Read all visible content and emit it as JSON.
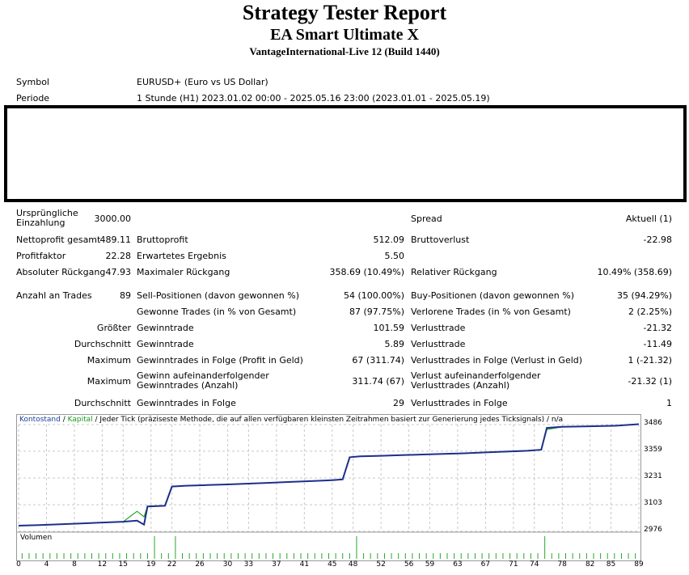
{
  "header": {
    "title": "Strategy Tester Report",
    "subtitle": "EA Smart Ultimate X",
    "server": "VantageInternational-Live 12 (Build 1440)"
  },
  "info": {
    "symbol_label": "Symbol",
    "symbol_value": "EURUSD+ (Euro vs US Dollar)",
    "period_label": "Periode",
    "period_value": "1 Stunde (H1) 2023.01.02 00:00 - 2025.05.16 23:00 (2023.01.01 - 2025.05.19)"
  },
  "stats": {
    "initial_label": "Ursprüngliche Einzahlung",
    "initial_value": "3000.00",
    "spread_label": "Spread",
    "spread_value": "Aktuell (1)",
    "netprofit_label": "Nettoprofit gesamt",
    "netprofit_value": "489.11",
    "grossprofit_label": "Bruttoprofit",
    "grossprofit_value": "512.09",
    "grossloss_label": "Bruttoverlust",
    "grossloss_value": "-22.98",
    "profitfactor_label": "Profitfaktor",
    "profitfactor_value": "22.28",
    "expected_label": "Erwartetes Ergebnis",
    "expected_value": "5.50",
    "absdd_label": "Absoluter Rückgang",
    "absdd_value": "47.93",
    "maxdd_label": "Maximaler Rückgang",
    "maxdd_value": "358.69 (10.49%)",
    "reldd_label": "Relativer Rückgang",
    "reldd_value": "10.49% (358.69)",
    "trades_label": "Anzahl an Trades",
    "trades_value": "89",
    "sell_label": "Sell-Positionen (davon gewonnen %)",
    "sell_value": "54 (100.00%)",
    "buy_label": "Buy-Positionen (davon gewonnen %)",
    "buy_value": "35 (94.29%)",
    "won_label": "Gewonne Trades (in % von Gesamt)",
    "won_value": "87 (97.75%)",
    "lost_label": "Verlorene Trades (in % von Gesamt)",
    "lost_value": "2 (2.25%)",
    "largest_prefix": "Größter",
    "largest_win_label": "Gewinntrade",
    "largest_win_value": "101.59",
    "largest_loss_label": "Verlusttrade",
    "largest_loss_value": "-21.32",
    "avg_prefix": "Durchschnitt",
    "avg_win_label": "Gewinntrade",
    "avg_win_value": "5.89",
    "avg_loss_label": "Verlusttrade",
    "avg_loss_value": "-11.49",
    "max_prefix": "Maximum",
    "max_consec_win_label": "Gewinntrades in Folge (Profit in Geld)",
    "max_consec_win_value": "67 (311.74)",
    "max_consec_loss_label": "Verlusttrades in Folge (Verlust in Geld)",
    "max_consec_loss_value": "1 (-21.32)",
    "max2_prefix": "Maximum",
    "max_consec_profit_label": "Gewinn aufeinanderfolgender Gewinntrades (Anzahl)",
    "max_consec_profit_value": "311.74 (67)",
    "max_consec_lossamt_label": "Verlust aufeinanderfolgender Verlusttrades (Anzahl)",
    "max_consec_lossamt_value": "-21.32 (1)",
    "avg2_prefix": "Durchschnitt",
    "avg_consec_win_label": "Gewinntrades in Folge",
    "avg_consec_win_value": "29",
    "avg_consec_loss_label": "Verlusttrades in Folge",
    "avg_consec_loss_value": "1"
  },
  "chart": {
    "legend_balance": "Kontostand",
    "legend_sep": " / ",
    "legend_equity": "Kapital",
    "legend_rest": " / Jeder Tick (präziseste Methode, die auf allen verfügbaren kleinsten Zeitrahmen basiert zur Generierung jedes Ticksignals) / n/a",
    "volume_label": "Volumen",
    "colors": {
      "balance": "#1c2f8c",
      "equity": "#2aa52a",
      "volume": "#2aa52a",
      "grid": "#c8c8c8"
    }
  },
  "chart_data": {
    "type": "line",
    "ylim": [
      2976,
      3486
    ],
    "xlim": [
      0,
      89
    ],
    "y_ticks": [
      "3486",
      "3359",
      "3231",
      "3103",
      "2976"
    ],
    "x_ticks": [
      "0",
      "4",
      "8",
      "12",
      "15",
      "19",
      "22",
      "26",
      "30",
      "33",
      "37",
      "41",
      "45",
      "48",
      "52",
      "56",
      "59",
      "63",
      "67",
      "71",
      "74",
      "78",
      "82",
      "85",
      "89"
    ],
    "series": [
      {
        "name": "Kontostand",
        "x": [
          0,
          3,
          6,
          9,
          12,
          15,
          17,
          18,
          18.5,
          21,
          22,
          24,
          27,
          30,
          33,
          36,
          39,
          42,
          45,
          46.5,
          47.5,
          49,
          52,
          55,
          58,
          61,
          64,
          67,
          70,
          73,
          75,
          75.8,
          78,
          82,
          86,
          89
        ],
        "y": [
          3003,
          3006,
          3010,
          3014,
          3018,
          3022,
          3027,
          3008,
          3095,
          3098,
          3190,
          3194,
          3197,
          3200,
          3204,
          3208,
          3212,
          3216,
          3220,
          3224,
          3330,
          3334,
          3337,
          3340,
          3343,
          3346,
          3349,
          3353,
          3357,
          3361,
          3366,
          3470,
          3475,
          3478,
          3481,
          3488
        ]
      },
      {
        "name": "Kapital",
        "x": [
          0,
          3,
          6,
          9,
          12,
          15,
          17,
          18,
          18.5,
          21,
          22,
          24,
          27,
          30,
          33,
          36,
          39,
          42,
          45,
          46.5,
          47.5,
          49,
          52,
          55,
          58,
          61,
          64,
          67,
          70,
          73,
          75,
          75.8,
          78,
          82,
          86,
          89
        ],
        "y": [
          3003,
          3006,
          3010,
          3014,
          3018,
          3022,
          3072,
          3045,
          3095,
          3098,
          3190,
          3194,
          3197,
          3200,
          3204,
          3208,
          3212,
          3216,
          3220,
          3224,
          3330,
          3334,
          3337,
          3340,
          3343,
          3346,
          3349,
          3353,
          3357,
          3361,
          3366,
          3462,
          3475,
          3478,
          3481,
          3488
        ]
      }
    ],
    "volume": [
      1,
      1,
      1,
      1,
      1,
      1,
      1,
      1,
      1,
      1,
      1,
      1,
      1,
      1,
      1,
      1,
      1,
      1,
      1,
      1,
      1,
      1,
      1,
      1,
      1,
      1,
      1,
      1,
      1,
      1,
      1,
      1,
      1,
      1,
      1,
      1,
      1,
      1,
      1,
      1,
      1,
      1,
      1,
      1,
      1,
      1,
      1,
      1,
      1,
      1,
      1,
      1,
      1,
      1,
      1,
      1,
      1,
      1,
      1,
      1,
      1,
      1,
      1,
      1,
      1,
      1,
      1,
      1,
      1,
      1,
      1,
      1,
      1,
      1,
      1,
      1,
      1,
      1,
      1,
      1,
      1,
      1,
      1,
      1,
      1,
      1,
      1,
      1,
      1
    ],
    "volume_spikes": [
      19,
      22,
      48,
      75
    ]
  }
}
